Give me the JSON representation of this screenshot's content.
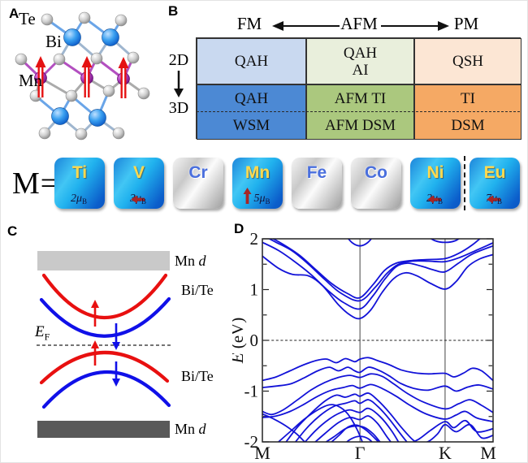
{
  "figure": {
    "panel_labels": {
      "a": "A",
      "b": "B",
      "c": "C",
      "d": "D"
    }
  },
  "panel_a": {
    "labels": {
      "te": "Te",
      "bi": "Bi",
      "mn": "Mn"
    },
    "atom_colors": {
      "te": "#b9b9b9",
      "bi": "#2196e8",
      "mn": "#a020a8"
    },
    "spin_arrow_color": "#e51212"
  },
  "panel_b": {
    "header": {
      "left": "FM",
      "center": "AFM",
      "right": "PM"
    },
    "side": {
      "top": "2D",
      "bottom": "3D"
    },
    "row_2d": [
      {
        "lines": [
          "QAH"
        ],
        "bg": "#c9d9f0"
      },
      {
        "lines": [
          "QAH",
          "AI"
        ],
        "bg": "#e9efdc"
      },
      {
        "lines": [
          "QSH"
        ],
        "bg": "#fce6d4"
      }
    ],
    "row_3d": [
      {
        "top": "QAH",
        "bottom": "WSM",
        "bg": "#4c89d4"
      },
      {
        "top": "AFM TI",
        "bottom": "AFM DSM",
        "bg": "#abc87e"
      },
      {
        "top": "TI",
        "bottom": "DSM",
        "bg": "#f5a964"
      }
    ]
  },
  "m_row": {
    "prefix": "M=",
    "unit": {
      "mu": "μ",
      "sub": "B"
    },
    "arrow_color": "#a62626",
    "tiles": [
      {
        "symbol": "Ti",
        "style": "blue",
        "moment": "2",
        "arrow": "none"
      },
      {
        "symbol": "V",
        "style": "blue",
        "moment": "3",
        "arrow": "left"
      },
      {
        "symbol": "Cr",
        "style": "silver"
      },
      {
        "symbol": "Mn",
        "style": "blue",
        "moment": "5",
        "arrow": "up"
      },
      {
        "symbol": "Fe",
        "style": "silver"
      },
      {
        "symbol": "Co",
        "style": "silver"
      },
      {
        "symbol": "Ni",
        "style": "blue",
        "moment": "2",
        "arrow": "left"
      },
      {
        "symbol": "Eu",
        "style": "blue",
        "moment": "7",
        "arrow": "left",
        "divider_before": true
      }
    ]
  },
  "panel_c": {
    "labels": {
      "mn": "Mn",
      "d": "d",
      "bi_te": "Bi/Te",
      "ef_e": "E",
      "ef_f": "F"
    },
    "colors": {
      "spin_up": "#e81010",
      "spin_down": "#1010e8",
      "band_top": "#c9c9c9",
      "band_bottom": "#595959"
    }
  },
  "chart_data": {
    "type": "line",
    "ylabel": "E (eV)",
    "ylim": [
      -2,
      2
    ],
    "yticks": [
      -2,
      -1,
      0,
      1,
      2
    ],
    "minor_tick_step": 0.5,
    "fermi_level": 0,
    "grid": false,
    "line_color": "#1212d8",
    "xticks": {
      "labels": [
        "M",
        "Γ",
        "K",
        "M"
      ],
      "positions": [
        0,
        0.423,
        0.792,
        1
      ]
    },
    "bands": [
      [
        [
          0,
          1.66
        ],
        [
          0.07,
          1.42
        ],
        [
          0.13,
          1.3
        ],
        [
          0.2,
          1.27
        ],
        [
          0.26,
          1.08
        ],
        [
          0.33,
          0.7
        ],
        [
          0.38,
          0.5
        ],
        [
          0.423,
          0.43
        ],
        [
          0.47,
          0.6
        ],
        [
          0.52,
          0.95
        ],
        [
          0.57,
          1.22
        ],
        [
          0.62,
          1.33
        ],
        [
          0.67,
          1.27
        ],
        [
          0.73,
          1.12
        ],
        [
          0.792,
          1.01
        ],
        [
          0.84,
          1.16
        ],
        [
          0.89,
          1.45
        ],
        [
          0.94,
          1.6
        ],
        [
          1,
          1.69
        ]
      ],
      [
        [
          0,
          1.93
        ],
        [
          0.07,
          1.77
        ],
        [
          0.14,
          1.55
        ],
        [
          0.21,
          1.3
        ],
        [
          0.28,
          1.0
        ],
        [
          0.35,
          0.75
        ],
        [
          0.423,
          0.62
        ],
        [
          0.48,
          0.88
        ],
        [
          0.53,
          1.2
        ],
        [
          0.58,
          1.45
        ],
        [
          0.63,
          1.52
        ],
        [
          0.69,
          1.46
        ],
        [
          0.74,
          1.39
        ],
        [
          0.792,
          1.35
        ],
        [
          0.85,
          1.52
        ],
        [
          0.91,
          1.7
        ],
        [
          1,
          1.86
        ]
      ],
      [
        [
          0,
          2.07
        ],
        [
          0.06,
          1.93
        ],
        [
          0.13,
          1.76
        ],
        [
          0.2,
          1.5
        ],
        [
          0.27,
          1.2
        ],
        [
          0.34,
          0.93
        ],
        [
          0.423,
          0.78
        ],
        [
          0.49,
          1.05
        ],
        [
          0.54,
          1.32
        ],
        [
          0.59,
          1.5
        ],
        [
          0.65,
          1.56
        ],
        [
          0.72,
          1.56
        ],
        [
          0.792,
          1.55
        ],
        [
          0.86,
          1.64
        ],
        [
          0.93,
          1.78
        ],
        [
          1,
          1.92
        ]
      ],
      [
        [
          0.02,
          2.07
        ],
        [
          0.09,
          1.89
        ],
        [
          0.16,
          1.68
        ],
        [
          0.23,
          1.4
        ],
        [
          0.3,
          1.12
        ],
        [
          0.37,
          0.92
        ],
        [
          0.423,
          0.84
        ],
        [
          0.48,
          1.1
        ],
        [
          0.53,
          1.38
        ],
        [
          0.58,
          1.52
        ],
        [
          0.64,
          1.57
        ],
        [
          0.71,
          1.59
        ],
        [
          0.792,
          1.61
        ],
        [
          0.85,
          1.71
        ],
        [
          0.91,
          1.88
        ],
        [
          0.96,
          2.07
        ]
      ],
      [
        [
          0.36,
          2.07
        ],
        [
          0.39,
          1.92
        ],
        [
          0.423,
          1.86
        ],
        [
          0.455,
          1.92
        ],
        [
          0.485,
          2.07
        ]
      ],
      [
        [
          0.705,
          2.07
        ],
        [
          0.75,
          1.96
        ],
        [
          0.792,
          1.93
        ],
        [
          0.835,
          1.96
        ],
        [
          0.875,
          2.07
        ]
      ],
      [
        [
          0,
          -0.79
        ],
        [
          0.06,
          -0.72
        ],
        [
          0.12,
          -0.6
        ],
        [
          0.18,
          -0.48
        ],
        [
          0.24,
          -0.39
        ],
        [
          0.28,
          -0.37
        ],
        [
          0.32,
          -0.44
        ],
        [
          0.36,
          -0.36
        ],
        [
          0.4,
          -0.42
        ],
        [
          0.423,
          -0.37
        ],
        [
          0.46,
          -0.34
        ],
        [
          0.5,
          -0.4
        ],
        [
          0.55,
          -0.48
        ],
        [
          0.6,
          -0.58
        ],
        [
          0.66,
          -0.64
        ],
        [
          0.72,
          -0.66
        ],
        [
          0.792,
          -0.65
        ],
        [
          0.83,
          -0.72
        ],
        [
          0.87,
          -0.65
        ],
        [
          0.91,
          -0.55
        ],
        [
          0.95,
          -0.6
        ],
        [
          1,
          -0.79
        ]
      ],
      [
        [
          0,
          -0.93
        ],
        [
          0.06,
          -0.9
        ],
        [
          0.12,
          -0.86
        ],
        [
          0.18,
          -0.74
        ],
        [
          0.24,
          -0.6
        ],
        [
          0.29,
          -0.53
        ],
        [
          0.33,
          -0.6
        ],
        [
          0.37,
          -0.53
        ],
        [
          0.4,
          -0.6
        ],
        [
          0.423,
          -0.63
        ],
        [
          0.46,
          -0.53
        ],
        [
          0.5,
          -0.58
        ],
        [
          0.55,
          -0.7
        ],
        [
          0.6,
          -0.85
        ],
        [
          0.66,
          -0.95
        ],
        [
          0.72,
          -0.98
        ],
        [
          0.792,
          -0.9
        ],
        [
          0.84,
          -1.0
        ],
        [
          0.89,
          -0.92
        ],
        [
          0.94,
          -0.88
        ],
        [
          1,
          -0.96
        ]
      ],
      [
        [
          0,
          -1.4
        ],
        [
          0.04,
          -1.46
        ],
        [
          0.09,
          -1.37
        ],
        [
          0.15,
          -1.18
        ],
        [
          0.21,
          -0.98
        ],
        [
          0.27,
          -0.83
        ],
        [
          0.33,
          -0.73
        ],
        [
          0.38,
          -0.69
        ],
        [
          0.423,
          -0.73
        ],
        [
          0.47,
          -0.66
        ],
        [
          0.52,
          -0.71
        ],
        [
          0.57,
          -0.86
        ],
        [
          0.63,
          -1.05
        ],
        [
          0.7,
          -1.22
        ],
        [
          0.792,
          -1.35
        ],
        [
          0.85,
          -1.25
        ],
        [
          0.9,
          -1.17
        ],
        [
          0.95,
          -1.28
        ],
        [
          1,
          -1.42
        ]
      ],
      [
        [
          0,
          -1.52
        ],
        [
          0.06,
          -1.49
        ],
        [
          0.12,
          -1.4
        ],
        [
          0.18,
          -1.26
        ],
        [
          0.24,
          -1.1
        ],
        [
          0.3,
          -0.98
        ],
        [
          0.35,
          -0.93
        ],
        [
          0.39,
          -0.89
        ],
        [
          0.423,
          -0.94
        ],
        [
          0.47,
          -0.87
        ],
        [
          0.52,
          -0.95
        ],
        [
          0.58,
          -1.1
        ],
        [
          0.64,
          -1.28
        ],
        [
          0.71,
          -1.45
        ],
        [
          0.792,
          -1.55
        ],
        [
          0.84,
          -1.47
        ],
        [
          0.88,
          -1.4
        ],
        [
          0.93,
          -1.53
        ],
        [
          1,
          -1.6
        ]
      ],
      [
        [
          0.09,
          -2.08
        ],
        [
          0.15,
          -1.72
        ],
        [
          0.21,
          -1.44
        ],
        [
          0.27,
          -1.2
        ],
        [
          0.32,
          -1.08
        ],
        [
          0.36,
          -1.12
        ],
        [
          0.4,
          -1.06
        ],
        [
          0.423,
          -1.1
        ],
        [
          0.46,
          -1.04
        ],
        [
          0.5,
          -1.18
        ],
        [
          0.55,
          -1.42
        ],
        [
          0.6,
          -1.7
        ],
        [
          0.65,
          -1.95
        ],
        [
          0.69,
          -2.08
        ]
      ],
      [
        [
          0.13,
          -2.08
        ],
        [
          0.19,
          -1.74
        ],
        [
          0.25,
          -1.48
        ],
        [
          0.31,
          -1.3
        ],
        [
          0.36,
          -1.24
        ],
        [
          0.4,
          -1.19
        ],
        [
          0.423,
          -1.24
        ],
        [
          0.46,
          -1.17
        ],
        [
          0.5,
          -1.3
        ],
        [
          0.55,
          -1.55
        ],
        [
          0.6,
          -1.85
        ],
        [
          0.64,
          -2.08
        ]
      ],
      [
        [
          0.17,
          -2.08
        ],
        [
          0.23,
          -1.78
        ],
        [
          0.29,
          -1.55
        ],
        [
          0.34,
          -1.42
        ],
        [
          0.38,
          -1.37
        ],
        [
          0.423,
          -1.42
        ],
        [
          0.46,
          -1.34
        ],
        [
          0.51,
          -1.5
        ],
        [
          0.56,
          -1.78
        ],
        [
          0.6,
          -2.08
        ]
      ],
      [
        [
          0.21,
          -2.08
        ],
        [
          0.27,
          -1.84
        ],
        [
          0.33,
          -1.62
        ],
        [
          0.38,
          -1.52
        ],
        [
          0.423,
          -1.56
        ],
        [
          0.46,
          -1.49
        ],
        [
          0.5,
          -1.64
        ],
        [
          0.54,
          -1.9
        ],
        [
          0.57,
          -2.08
        ]
      ],
      [
        [
          0.25,
          -2.08
        ],
        [
          0.31,
          -1.9
        ],
        [
          0.36,
          -1.74
        ],
        [
          0.4,
          -1.69
        ],
        [
          0.44,
          -1.71
        ],
        [
          0.48,
          -1.84
        ],
        [
          0.52,
          -2.05
        ],
        [
          0.54,
          -2.08
        ]
      ],
      [
        [
          0.345,
          -2.08
        ],
        [
          0.385,
          -1.94
        ],
        [
          0.423,
          -1.89
        ],
        [
          0.46,
          -1.94
        ],
        [
          0.49,
          -2.08
        ]
      ],
      [
        [
          0.05,
          -2.08
        ],
        [
          0.12,
          -1.8
        ],
        [
          0.18,
          -1.56
        ],
        [
          0.24,
          -1.37
        ],
        [
          0.29,
          -1.27
        ],
        [
          0.33,
          -1.3
        ],
        [
          0.37,
          -1.45
        ],
        [
          0.41,
          -1.75
        ],
        [
          0.44,
          -2.08
        ]
      ],
      [
        [
          0.28,
          -2.08
        ],
        [
          0.33,
          -1.88
        ],
        [
          0.37,
          -1.71
        ],
        [
          0.41,
          -1.67
        ],
        [
          0.45,
          -1.77
        ],
        [
          0.49,
          -1.94
        ],
        [
          0.52,
          -2.08
        ]
      ],
      [
        [
          0,
          -1.45
        ],
        [
          0.05,
          -1.55
        ],
        [
          0.1,
          -1.68
        ],
        [
          0.15,
          -1.85
        ],
        [
          0.2,
          -2.08
        ]
      ],
      [
        [
          0.62,
          -2.08
        ],
        [
          0.68,
          -1.94
        ],
        [
          0.73,
          -1.77
        ],
        [
          0.792,
          -1.6
        ],
        [
          0.83,
          -1.72
        ],
        [
          0.88,
          -1.58
        ],
        [
          0.93,
          -1.8
        ],
        [
          1,
          -1.74
        ]
      ],
      [
        [
          0.66,
          -2.08
        ],
        [
          0.72,
          -1.99
        ],
        [
          0.76,
          -1.84
        ],
        [
          0.792,
          -1.66
        ],
        [
          0.84,
          -1.8
        ],
        [
          0.9,
          -1.66
        ],
        [
          0.95,
          -1.92
        ],
        [
          1,
          -1.87
        ]
      ]
    ]
  }
}
